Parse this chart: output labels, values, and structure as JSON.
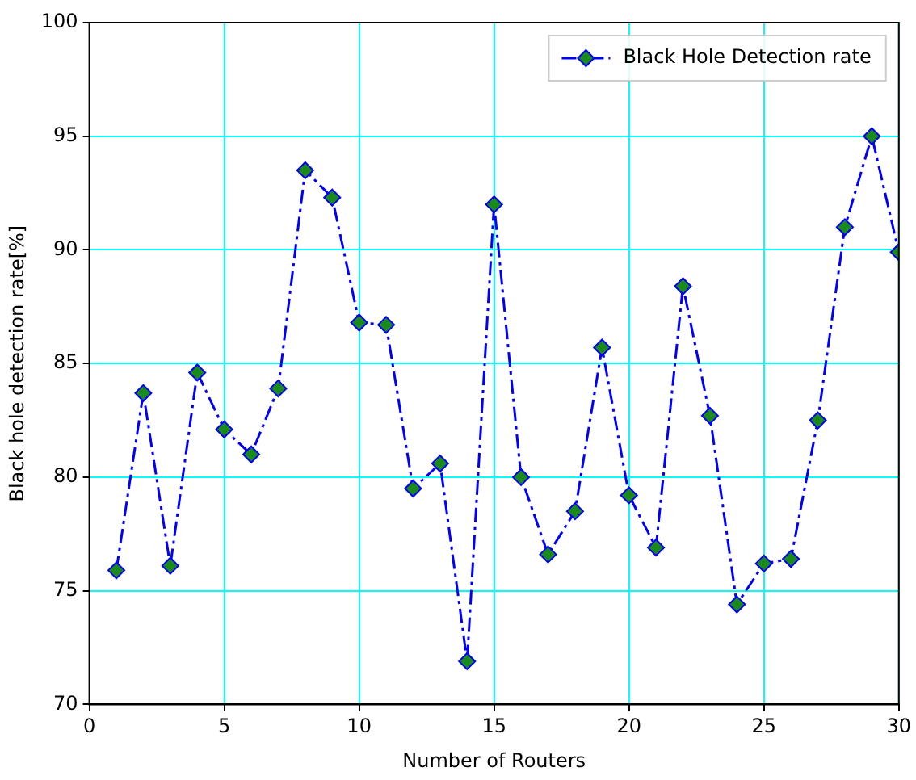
{
  "chart_data": {
    "type": "line",
    "xlabel": "Number of Routers",
    "ylabel": "Black hole detection rate[%]",
    "x": [
      1,
      2,
      3,
      4,
      5,
      6,
      7,
      8,
      9,
      10,
      11,
      12,
      13,
      14,
      15,
      16,
      17,
      18,
      19,
      20,
      21,
      22,
      23,
      24,
      25,
      26,
      27,
      28,
      29,
      30
    ],
    "series": [
      {
        "name": "Black Hole Detection rate",
        "color": "#0000ff",
        "values": [
          75.9,
          83.7,
          76.1,
          84.6,
          82.1,
          81.0,
          83.9,
          93.5,
          92.3,
          86.8,
          86.7,
          79.5,
          80.6,
          71.9,
          92.0,
          80.0,
          76.6,
          78.5,
          85.7,
          79.2,
          76.9,
          88.4,
          82.7,
          74.4,
          76.2,
          76.4,
          82.5,
          91.0,
          95.0,
          89.9
        ]
      }
    ],
    "xlim": [
      0,
      30
    ],
    "xticks": [
      0,
      5,
      10,
      15,
      20,
      25,
      30
    ],
    "ylim": [
      70,
      100
    ],
    "yticks": [
      70,
      75,
      80,
      85,
      90,
      95,
      100
    ],
    "grid": true,
    "legend": "top right",
    "marker": "diamond",
    "line_style": "dashed"
  }
}
